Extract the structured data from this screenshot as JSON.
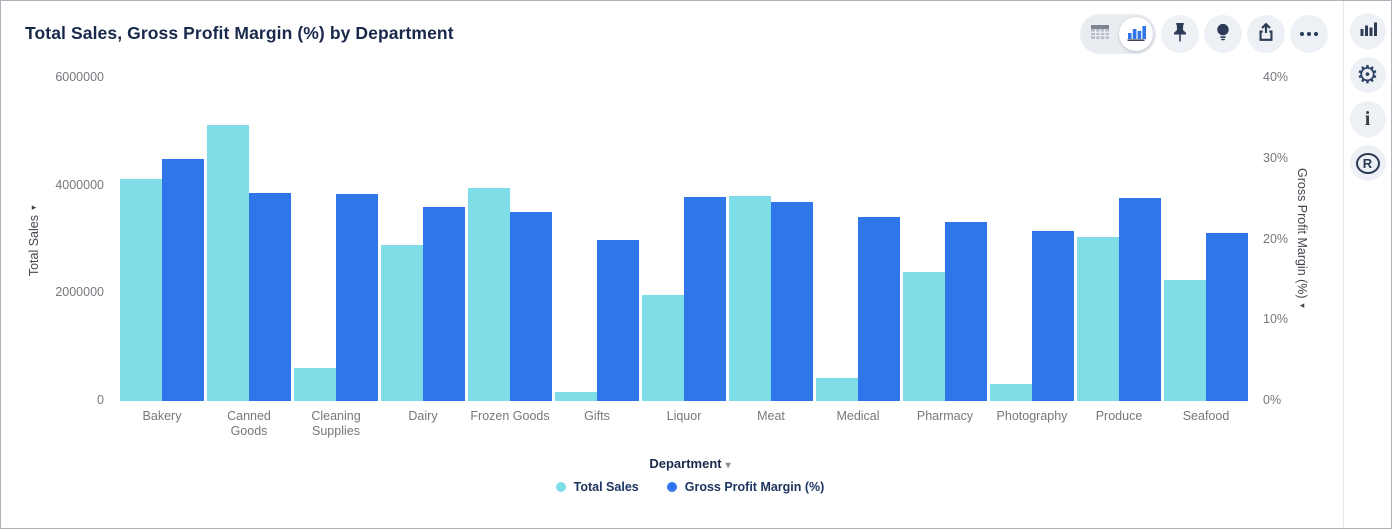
{
  "header": {
    "title": "Total Sales, Gross Profit Margin (%) by Department"
  },
  "toolbar": {
    "view_toggle": {
      "options": [
        "table-view",
        "chart-view"
      ],
      "selected": "chart-view"
    },
    "icons": [
      "table-grid-icon",
      "bar-chart-icon",
      "pushpin-icon",
      "lightbulb-icon",
      "share-export-icon",
      "ellipsis-icon"
    ]
  },
  "rail": {
    "icons": [
      "chart-type-icon",
      "settings-gear-icon",
      "info-icon",
      "r-logo-icon"
    ],
    "r_logo_text": "R",
    "info_text": "i"
  },
  "colors": {
    "total_sales": "#7fdde8",
    "gross_profit_margin": "#2f76eb",
    "title_text": "#19294a",
    "axis_text": "#75787d",
    "icon_dark": "#2b3a55",
    "button_bg": "#edf0f4"
  },
  "chart_data": {
    "type": "bar",
    "title": "Total Sales, Gross Profit Margin (%) by Department",
    "categories": [
      "Bakery",
      "Canned Goods",
      "Cleaning Supplies",
      "Dairy",
      "Frozen Goods",
      "Gifts",
      "Liquor",
      "Meat",
      "Medical",
      "Pharmacy",
      "Photography",
      "Produce",
      "Seafood"
    ],
    "series": [
      {
        "name": "Total Sales",
        "axis": "left",
        "color": "#7fdde8",
        "values": [
          4130000,
          5130000,
          620000,
          2900000,
          3960000,
          170000,
          1970000,
          3800000,
          430000,
          2400000,
          320000,
          3050000,
          2250000
        ]
      },
      {
        "name": "Gross Profit Margin (%)",
        "axis": "right",
        "color": "#2f76eb",
        "values": [
          30.0,
          25.8,
          25.7,
          24.0,
          23.4,
          20.0,
          25.3,
          24.7,
          22.8,
          22.2,
          21.1,
          25.1,
          20.8
        ]
      }
    ],
    "left_axis": {
      "label": "Total Sales",
      "min": 0,
      "max": 6000000,
      "ticks": [
        "0",
        "2000000",
        "4000000",
        "6000000"
      ]
    },
    "right_axis": {
      "label": "Gross Profit Margin (%)",
      "min": 0,
      "max": 40,
      "ticks": [
        "0%",
        "10%",
        "20%",
        "30%",
        "40%"
      ]
    },
    "x_axis": {
      "label": "Department",
      "caret": "▾"
    },
    "legend": [
      "Total Sales",
      "Gross Profit Margin (%)"
    ],
    "legend_position": "bottom",
    "grid": false,
    "arrows": {
      "left": "▸",
      "right": "◂"
    }
  }
}
